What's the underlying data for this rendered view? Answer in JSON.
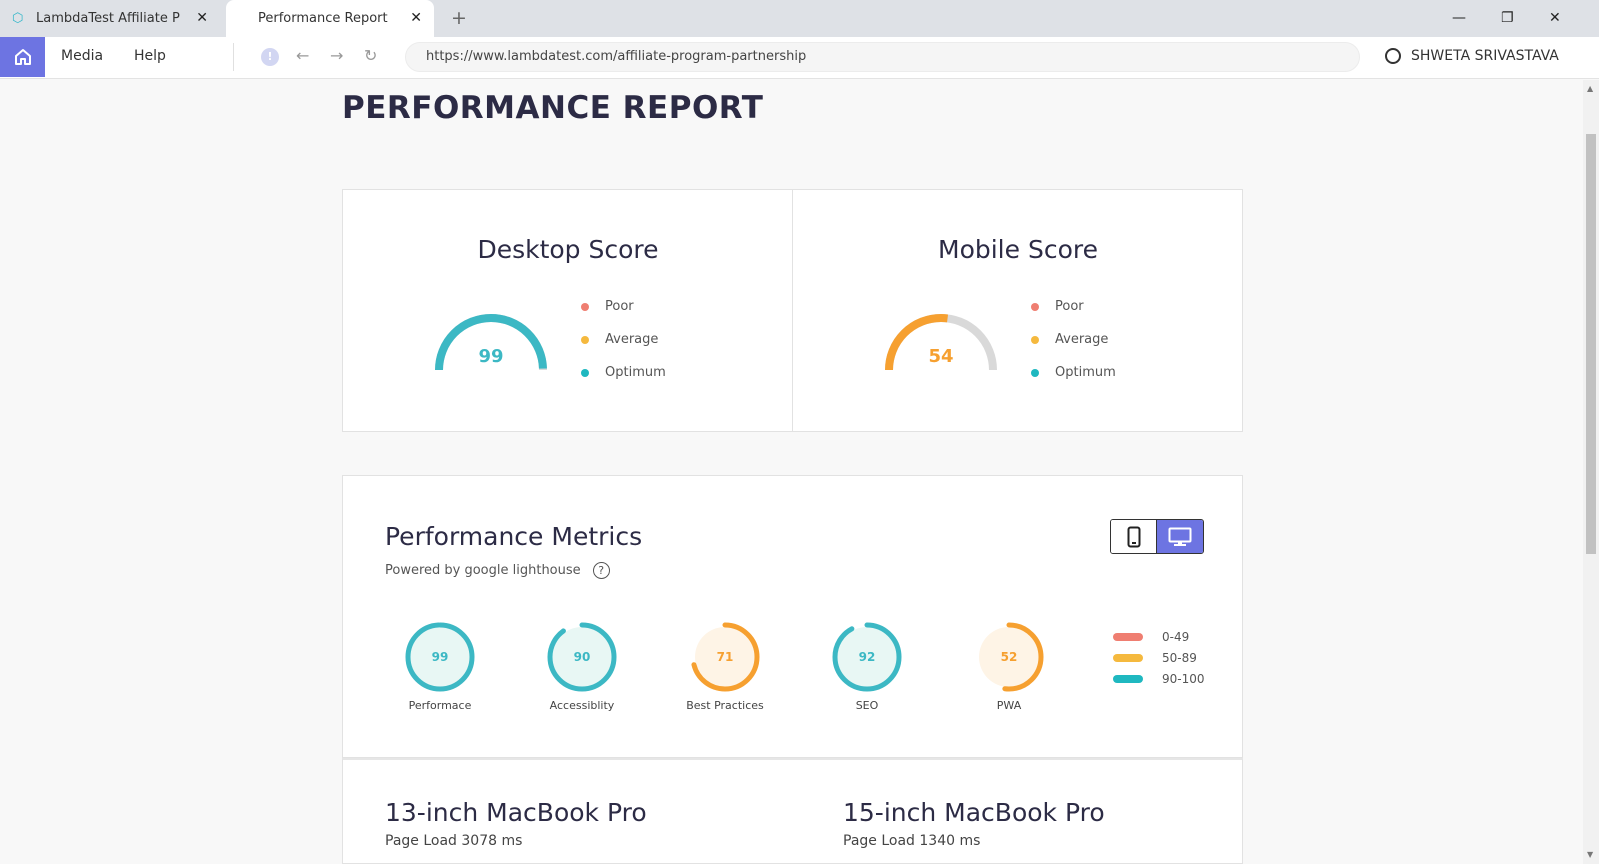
{
  "browser": {
    "tabs": [
      {
        "label": "LambdaTest Affiliate P",
        "active": false
      },
      {
        "label": "Performance Report",
        "active": true
      }
    ],
    "new_tab_symbol": "+",
    "menu": [
      "Media",
      "Help"
    ],
    "url": "https://www.lambdatest.com/affiliate-program-partnership",
    "user": "SHWETA SRIVASTAVA"
  },
  "page": {
    "title": "PERFORMANCE REPORT",
    "desktop": {
      "title": "Desktop Score",
      "score": 99,
      "color": "#3cb8c4"
    },
    "mobile": {
      "title": "Mobile Score",
      "score": 54,
      "color": "#f6a030"
    },
    "legend": [
      {
        "label": "Poor",
        "color": "#ef7e71"
      },
      {
        "label": "Average",
        "color": "#f5b93e"
      },
      {
        "label": "Optimum",
        "color": "#1fb8c0"
      }
    ],
    "metrics": {
      "title": "Performance Metrics",
      "powered_by": "Powered by google lighthouse",
      "help_symbol": "?",
      "items": [
        {
          "label": "Performace",
          "value": 99,
          "color": "#3cb8c4",
          "fill": "#e8f7f4"
        },
        {
          "label": "Accessiblity",
          "value": 90,
          "color": "#3cb8c4",
          "fill": "#e8f7f4"
        },
        {
          "label": "Best Practices",
          "value": 71,
          "color": "#f6a030",
          "fill": "#fef4e6"
        },
        {
          "label": "SEO",
          "value": 92,
          "color": "#3cb8c4",
          "fill": "#e8f7f4"
        },
        {
          "label": "PWA",
          "value": 52,
          "color": "#f6a030",
          "fill": "#fef4e6"
        }
      ],
      "ranges": [
        {
          "label": "0-49",
          "color": "#ef7e71"
        },
        {
          "label": "50-89",
          "color": "#f5b93e"
        },
        {
          "label": "90-100",
          "color": "#1fb8c0"
        }
      ]
    },
    "devices": [
      {
        "name": "13-inch MacBook Pro",
        "page_load": "Page Load 3078 ms"
      },
      {
        "name": "15-inch MacBook Pro",
        "page_load": "Page Load 1340 ms"
      }
    ]
  }
}
